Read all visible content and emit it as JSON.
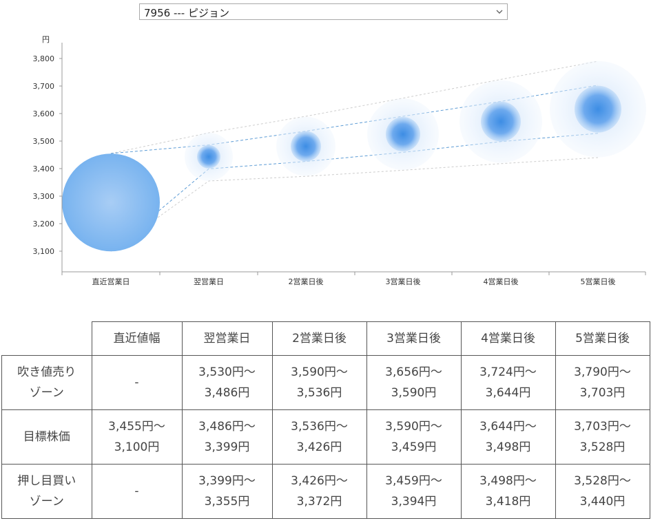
{
  "selector": {
    "value": "7956 --- ピジョン",
    "icon": "chevron-down-icon"
  },
  "chart_data": {
    "type": "scatter",
    "ylabel": "円",
    "yticks": [
      3100,
      3200,
      3300,
      3400,
      3500,
      3600,
      3700,
      3800
    ],
    "ylim": [
      3025,
      3850
    ],
    "categories": [
      "直近営業日",
      "翌営業日",
      "2営業日後",
      "3営業日後",
      "4営業日後",
      "5営業日後"
    ],
    "points": [
      {
        "category": "直近営業日",
        "center": 3277,
        "low": 3100,
        "high": 3455
      },
      {
        "category": "翌営業日",
        "center": 3443,
        "low": 3399,
        "high": 3486
      },
      {
        "category": "2営業日後",
        "center": 3481,
        "low": 3426,
        "high": 3536
      },
      {
        "category": "3営業日後",
        "center": 3525,
        "low": 3459,
        "high": 3590
      },
      {
        "category": "4営業日後",
        "center": 3571,
        "low": 3498,
        "high": 3644
      },
      {
        "category": "5営業日後",
        "center": 3616,
        "low": 3528,
        "high": 3703
      }
    ],
    "outer_band": {
      "upper": [
        3455,
        3530,
        3590,
        3656,
        3724,
        3790
      ],
      "lower": [
        3100,
        3355,
        3372,
        3394,
        3418,
        3440
      ]
    },
    "inner_band": {
      "upper": [
        3455,
        3486,
        3536,
        3590,
        3644,
        3703
      ],
      "lower": [
        3100,
        3399,
        3426,
        3459,
        3498,
        3528
      ]
    },
    "colors": {
      "bubble": "#4a9ae8",
      "axis": "#999999",
      "inner_line": "#5b9bd5",
      "outer_line": "#bbbbbb"
    }
  },
  "table": {
    "headers": [
      "",
      "直近値幅",
      "翌営業日",
      "2営業日後",
      "3営業日後",
      "4営業日後",
      "5営業日後"
    ],
    "rows": [
      {
        "label": [
          "吹き値売り",
          "ゾーン"
        ],
        "cells": [
          [
            "-"
          ],
          [
            "3,530円〜",
            "3,486円"
          ],
          [
            "3,590円〜",
            "3,536円"
          ],
          [
            "3,656円〜",
            "3,590円"
          ],
          [
            "3,724円〜",
            "3,644円"
          ],
          [
            "3,790円〜",
            "3,703円"
          ]
        ]
      },
      {
        "label": [
          "目標株価"
        ],
        "cells": [
          [
            "3,455円〜",
            "3,100円"
          ],
          [
            "3,486円〜",
            "3,399円"
          ],
          [
            "3,536円〜",
            "3,426円"
          ],
          [
            "3,590円〜",
            "3,459円"
          ],
          [
            "3,644円〜",
            "3,498円"
          ],
          [
            "3,703円〜",
            "3,528円"
          ]
        ]
      },
      {
        "label": [
          "押し目買い",
          "ゾーン"
        ],
        "cells": [
          [
            "-"
          ],
          [
            "3,399円〜",
            "3,355円"
          ],
          [
            "3,426円〜",
            "3,372円"
          ],
          [
            "3,459円〜",
            "3,394円"
          ],
          [
            "3,498円〜",
            "3,418円"
          ],
          [
            "3,528円〜",
            "3,440円"
          ]
        ]
      }
    ]
  }
}
